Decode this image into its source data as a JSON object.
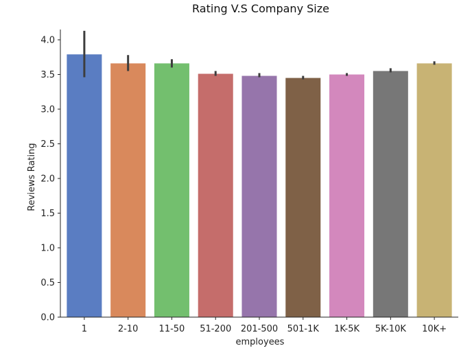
{
  "chart_data": {
    "type": "bar",
    "title": "Rating V.S Company Size",
    "xlabel": "employees",
    "ylabel": "Reviews Rating",
    "ylim": [
      0,
      4.2
    ],
    "yticks": [
      "0.0",
      "0.5",
      "1.0",
      "1.5",
      "2.0",
      "2.5",
      "3.0",
      "3.5",
      "4.0"
    ],
    "categories": [
      "1",
      "2-10",
      "11-50",
      "51-200",
      "201-500",
      "501-1K",
      "1K-5K",
      "5K-10K",
      "10K+"
    ],
    "values": [
      3.79,
      3.66,
      3.66,
      3.51,
      3.48,
      3.45,
      3.5,
      3.55,
      3.66
    ],
    "error_low": [
      3.46,
      3.55,
      3.6,
      3.48,
      3.46,
      3.43,
      3.48,
      3.53,
      3.64
    ],
    "error_high": [
      4.13,
      3.78,
      3.72,
      3.55,
      3.52,
      3.48,
      3.52,
      3.59,
      3.69
    ],
    "colors": [
      "#5a7dc2",
      "#d9895c",
      "#73bf6e",
      "#c56d6b",
      "#9675ab",
      "#7f6147",
      "#d388bd",
      "#777777",
      "#c8b374"
    ],
    "grid": false,
    "legend": "none"
  }
}
